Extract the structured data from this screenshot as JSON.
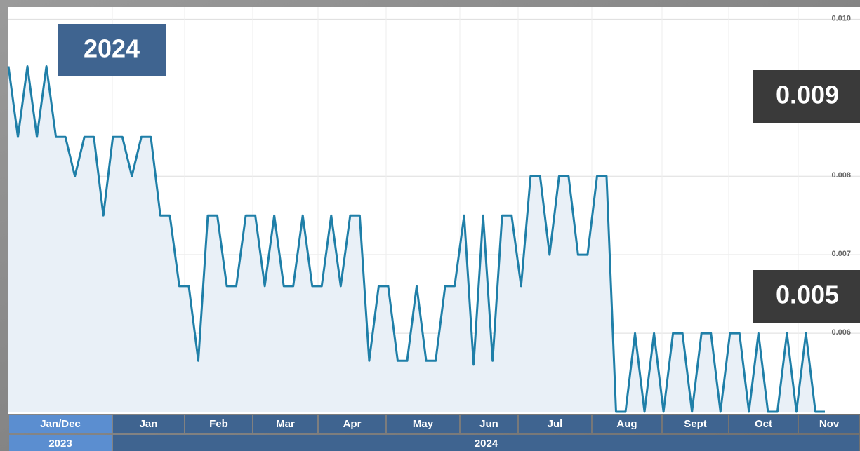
{
  "chart_data": {
    "type": "line",
    "badge": "2024",
    "price_labels": [
      "0.009",
      "0.005"
    ],
    "values": [
      0.0094,
      0.0085,
      0.0094,
      0.0085,
      0.0094,
      0.0085,
      0.0085,
      0.008,
      0.0085,
      0.0085,
      0.0075,
      0.0085,
      0.0085,
      0.008,
      0.0085,
      0.0085,
      0.0075,
      0.0075,
      0.0066,
      0.0066,
      0.00565,
      0.0075,
      0.0075,
      0.0066,
      0.0066,
      0.0075,
      0.0075,
      0.0066,
      0.0075,
      0.0066,
      0.0066,
      0.0075,
      0.0066,
      0.0066,
      0.0075,
      0.0066,
      0.0075,
      0.0075,
      0.00565,
      0.0066,
      0.0066,
      0.00565,
      0.00565,
      0.0066,
      0.00565,
      0.00565,
      0.0066,
      0.0066,
      0.0075,
      0.0056,
      0.0075,
      0.00565,
      0.0075,
      0.0075,
      0.0066,
      0.008,
      0.008,
      0.007,
      0.008,
      0.008,
      0.007,
      0.007,
      0.008,
      0.008,
      0.005,
      0.005,
      0.006,
      0.005,
      0.006,
      0.005,
      0.006,
      0.006,
      0.005,
      0.006,
      0.006,
      0.005,
      0.006,
      0.006,
      0.005,
      0.006,
      0.005,
      0.005,
      0.006,
      0.005,
      0.006,
      0.005,
      0.005
    ],
    "color": "#1f7fa8",
    "fill_color": "#e9f0f7",
    "ylim": [
      0.005,
      0.0102
    ],
    "yticks": [
      0.006,
      0.007,
      0.008,
      {
        "value": 0.01,
        "label": "0.010"
      }
    ],
    "grid": true,
    "months": [
      "Jan/Dec",
      "Jan",
      "Feb",
      "Mar",
      "Apr",
      "May",
      "Jun",
      "Jul",
      "Aug",
      "Sept",
      "Oct",
      "Nov"
    ],
    "years": [
      "2023",
      "2024"
    ]
  }
}
